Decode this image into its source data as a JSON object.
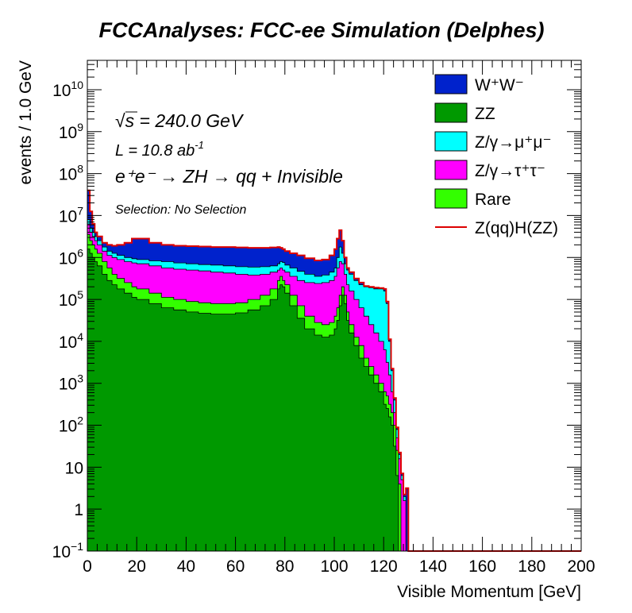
{
  "chart_data": {
    "type": "area",
    "title": "FCCAnalyses: FCC-ee Simulation (Delphes)",
    "xlabel": "Visible Momentum [GeV]",
    "ylabel": "events / 1.0 GeV",
    "xlim": [
      0,
      200
    ],
    "ylim_log10": [
      -1,
      10.7
    ],
    "yscale": "log",
    "stacked": true,
    "x_ticks": [
      0,
      20,
      40,
      60,
      80,
      100,
      120,
      140,
      160,
      180,
      200
    ],
    "x_tick_labels": [
      "0",
      "20",
      "40",
      "60",
      "80",
      "100",
      "120",
      "140",
      "160",
      "180",
      "200"
    ],
    "y_ticks": [
      {
        "exp": -1,
        "base": "10",
        "sup": "−1"
      },
      {
        "exp": 0,
        "base": "1",
        "sup": ""
      },
      {
        "exp": 1,
        "base": "10",
        "sup": ""
      },
      {
        "exp": 2,
        "base": "10",
        "sup": "2"
      },
      {
        "exp": 3,
        "base": "10",
        "sup": "3"
      },
      {
        "exp": 4,
        "base": "10",
        "sup": "4"
      },
      {
        "exp": 5,
        "base": "10",
        "sup": "5"
      },
      {
        "exp": 6,
        "base": "10",
        "sup": "6"
      },
      {
        "exp": 7,
        "base": "10",
        "sup": "7"
      },
      {
        "exp": 8,
        "base": "10",
        "sup": "8"
      },
      {
        "exp": 9,
        "base": "10",
        "sup": "9"
      },
      {
        "exp": 10,
        "base": "10",
        "sup": "10"
      }
    ],
    "annotations": {
      "sqrt_prefix": "√",
      "sqrt_s": "s",
      "energy": " = 240.0 GeV",
      "lumi_main": "L = 10.8 ab",
      "lumi_sup": "-1",
      "process": "e⁺e⁻ → ZH → qq + Invisible",
      "selection": "Selection: No Selection"
    },
    "legend_position": "top-right",
    "legend": [
      {
        "label_base": "W",
        "label_rest": "⁺W⁻",
        "color": "#0022cc"
      },
      {
        "label_base": "ZZ",
        "label_rest": "",
        "color": "#009900"
      },
      {
        "label_base": "Z/γ→μ",
        "label_rest": "⁺μ⁻",
        "color": "#00ffff"
      },
      {
        "label_base": "Z/γ→τ",
        "label_rest": "⁺τ⁻",
        "color": "#ff00ff"
      },
      {
        "label_base": "Rare",
        "label_rest": "",
        "color": "#33ff00"
      },
      {
        "label_base": "Z(qq)H(ZZ)",
        "label_rest": "",
        "color": "#dd0000",
        "style": "line"
      }
    ],
    "x": [
      0,
      1,
      2,
      3,
      4,
      6,
      8,
      10,
      12,
      15,
      18,
      20,
      25,
      30,
      35,
      40,
      45,
      50,
      55,
      60,
      65,
      70,
      74,
      77,
      78,
      79,
      80,
      82,
      85,
      88,
      92,
      95,
      98,
      100,
      101,
      102,
      103,
      104,
      105,
      106,
      108,
      110,
      112,
      114,
      116,
      118,
      120,
      121,
      122,
      123,
      124,
      125,
      126,
      127,
      128,
      129,
      130,
      131
    ],
    "series": [
      {
        "name": "ZZ",
        "color": "#009900",
        "log10": [
          6.2,
          6.1,
          6.0,
          5.9,
          5.8,
          5.6,
          5.45,
          5.35,
          5.25,
          5.15,
          5.05,
          5.0,
          4.9,
          4.8,
          4.75,
          4.7,
          4.67,
          4.65,
          4.65,
          4.68,
          4.75,
          4.85,
          5.0,
          5.25,
          5.35,
          5.3,
          5.15,
          4.85,
          4.55,
          4.3,
          4.15,
          4.1,
          4.15,
          4.3,
          4.5,
          4.85,
          5.1,
          4.9,
          4.5,
          4.2,
          3.9,
          3.6,
          3.4,
          3.2,
          3.0,
          2.8,
          2.5,
          2.4,
          2.2,
          2.0,
          1.5,
          0.8,
          -1,
          -1,
          -1,
          -1,
          -1,
          -1
        ]
      },
      {
        "name": "Rare",
        "color": "#33ff00",
        "log10": [
          6.55,
          6.4,
          6.3,
          6.2,
          6.1,
          5.9,
          5.75,
          5.6,
          5.5,
          5.4,
          5.3,
          5.25,
          5.15,
          5.05,
          5.0,
          4.95,
          4.92,
          4.9,
          4.9,
          4.92,
          5.0,
          5.1,
          5.25,
          5.45,
          5.55,
          5.45,
          5.35,
          5.1,
          4.85,
          4.6,
          4.45,
          4.4,
          4.45,
          4.6,
          4.8,
          5.1,
          5.3,
          5.1,
          4.7,
          4.4,
          4.1,
          3.9,
          3.6,
          3.4,
          3.2,
          3.0,
          2.8,
          2.7,
          2.5,
          2.3,
          2.0,
          1.4,
          0.6,
          -1,
          -1,
          -1,
          -1,
          -1
        ]
      },
      {
        "name": "Z/γ→τ⁺τ⁻",
        "color": "#ff00ff",
        "log10": [
          6.8,
          6.6,
          6.5,
          6.4,
          6.3,
          6.15,
          6.05,
          6.0,
          5.95,
          5.9,
          5.87,
          5.85,
          5.8,
          5.75,
          5.72,
          5.7,
          5.68,
          5.65,
          5.63,
          5.6,
          5.58,
          5.6,
          5.65,
          5.7,
          5.75,
          5.7,
          5.65,
          5.55,
          5.45,
          5.4,
          5.38,
          5.4,
          5.45,
          5.55,
          5.75,
          5.9,
          5.85,
          5.6,
          5.35,
          5.2,
          5.0,
          4.8,
          4.6,
          4.4,
          4.2,
          4.0,
          3.8,
          3.5,
          3.2,
          2.8,
          2.3,
          1.7,
          1.2,
          0.7,
          0.2,
          -1,
          -1,
          -1
        ]
      },
      {
        "name": "Z/γ→μ⁺μ⁻",
        "color": "#00ffff",
        "log10": [
          6.9,
          6.7,
          6.6,
          6.5,
          6.4,
          6.25,
          6.15,
          6.1,
          6.05,
          6.0,
          5.97,
          5.95,
          5.92,
          5.9,
          5.87,
          5.85,
          5.83,
          5.82,
          5.8,
          5.78,
          5.77,
          5.78,
          5.8,
          5.85,
          5.9,
          5.88,
          5.82,
          5.75,
          5.67,
          5.6,
          5.55,
          5.58,
          5.65,
          5.75,
          6.0,
          6.25,
          6.1,
          5.85,
          5.7,
          5.6,
          5.45,
          5.35,
          5.3,
          5.28,
          5.25,
          5.25,
          5.2,
          4.9,
          4.0,
          3.3,
          2.6,
          1.9,
          1.3,
          0.8,
          0.3,
          -1,
          -1,
          -1
        ]
      },
      {
        "name": "W⁺W⁻",
        "color": "#0022cc",
        "log10": [
          7.6,
          7.1,
          6.8,
          6.6,
          6.5,
          6.35,
          6.3,
          6.28,
          6.3,
          6.35,
          6.45,
          6.45,
          6.35,
          6.3,
          6.28,
          6.27,
          6.26,
          6.25,
          6.25,
          6.24,
          6.23,
          6.23,
          6.24,
          6.25,
          6.23,
          6.2,
          6.15,
          6.1,
          6.05,
          5.98,
          5.93,
          5.95,
          6.05,
          6.2,
          6.45,
          6.65,
          6.4,
          6.0,
          5.75,
          5.65,
          5.5,
          5.4,
          5.32,
          5.3,
          5.28,
          5.27,
          5.25,
          4.95,
          4.05,
          3.35,
          2.65,
          1.95,
          1.35,
          0.85,
          0.35,
          0.5,
          -1,
          -1
        ]
      },
      {
        "name": "Z(qq)H(ZZ)",
        "color": "#dd0000",
        "style": "line",
        "log10": [
          7.6,
          7.1,
          6.8,
          6.6,
          6.5,
          6.35,
          6.3,
          6.28,
          6.3,
          6.35,
          6.45,
          6.45,
          6.35,
          6.3,
          6.28,
          6.27,
          6.26,
          6.25,
          6.25,
          6.24,
          6.23,
          6.23,
          6.24,
          6.25,
          6.23,
          6.2,
          6.15,
          6.1,
          6.05,
          5.98,
          5.93,
          5.95,
          6.05,
          6.2,
          6.45,
          6.65,
          6.4,
          6.0,
          5.75,
          5.65,
          5.5,
          5.4,
          5.32,
          5.3,
          5.28,
          5.27,
          5.25,
          4.95,
          4.05,
          3.35,
          2.65,
          1.95,
          1.35,
          0.85,
          0.35,
          0.5,
          -1,
          -1
        ]
      }
    ]
  }
}
